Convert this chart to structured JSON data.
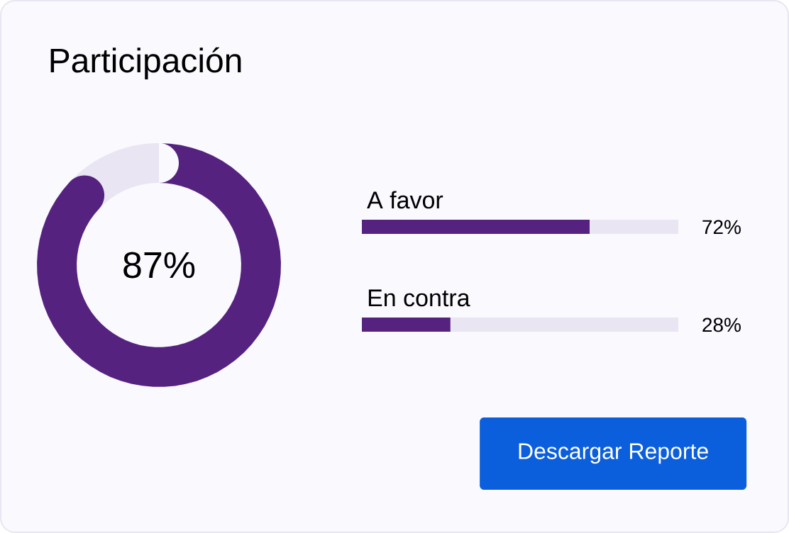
{
  "chart_data": [
    {
      "type": "donut",
      "title": "Participación",
      "categories": [
        null,
        null
      ],
      "values": [
        87,
        13
      ],
      "colors": [
        "#55237f",
        "#e9e5f3"
      ],
      "value_labels": [
        "87%",
        null
      ]
    },
    {
      "type": "bar",
      "orientation": "horizontal",
      "stacked": true,
      "categories": [
        "A favor",
        "En contra"
      ],
      "series": [
        {
          "color": "#55237f",
          "values": [
            72,
            28
          ],
          "value_labels": [
            "72%",
            "28%"
          ]
        },
        {
          "color": "#e9e5f3",
          "values": [
            28,
            72
          ]
        }
      ],
      "xlim": [
        0,
        100
      ],
      "annotations": [
        "Descargar Reporte"
      ]
    }
  ]
}
